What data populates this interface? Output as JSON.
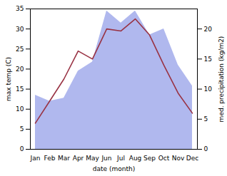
{
  "chart_data": {
    "type": "line",
    "xlabel": "date (month)",
    "ylabel": "max temp (C)",
    "y2label": "med. precipitation (kg/m2)",
    "categories": [
      "Jan",
      "Feb",
      "Mar",
      "Apr",
      "May",
      "Jun",
      "Jul",
      "Aug",
      "Sep",
      "Oct",
      "Nov",
      "Dec"
    ],
    "series": [
      {
        "type": "area",
        "axis": "y2",
        "color": "#b0b8ee",
        "values": [
          9.0,
          8.0,
          8.5,
          13.0,
          14.5,
          23.0,
          21.0,
          23.0,
          19.0,
          20.0,
          14.0,
          10.5
        ]
      },
      {
        "type": "line",
        "color": "#993344",
        "values": [
          6.5,
          12.0,
          17.5,
          24.5,
          22.5,
          30.0,
          29.5,
          32.5,
          28.5,
          21.0,
          14.0,
          9.0
        ]
      }
    ],
    "ylim": [
      0,
      35
    ],
    "yticks": [
      0,
      5,
      10,
      15,
      20,
      25,
      30,
      35
    ],
    "y2lim": [
      0,
      23.33
    ],
    "y2ticks": [
      0,
      5,
      10,
      15,
      20
    ]
  }
}
